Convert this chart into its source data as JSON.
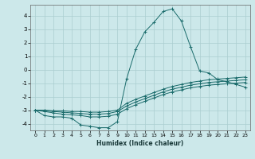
{
  "xlabel": "Humidex (Indice chaleur)",
  "xlim": [
    -0.5,
    23.5
  ],
  "ylim": [
    -4.5,
    4.8
  ],
  "xticks": [
    0,
    1,
    2,
    3,
    4,
    5,
    6,
    7,
    8,
    9,
    10,
    11,
    12,
    13,
    14,
    15,
    16,
    17,
    18,
    19,
    20,
    21,
    22,
    23
  ],
  "yticks": [
    -4,
    -3,
    -2,
    -1,
    0,
    1,
    2,
    3,
    4
  ],
  "bg_color": "#cce8ea",
  "grid_color": "#aacdd0",
  "line_color": "#1a6b6b",
  "lines": [
    {
      "x": [
        0,
        1,
        2,
        3,
        4,
        5,
        6,
        7,
        8,
        9,
        10,
        11,
        12,
        13,
        14,
        15,
        16,
        17,
        18,
        19,
        20,
        21,
        22,
        23
      ],
      "y": [
        -3.0,
        -3.4,
        -3.5,
        -3.5,
        -3.6,
        -4.1,
        -4.2,
        -4.3,
        -4.3,
        -3.85,
        -0.7,
        1.5,
        2.8,
        3.5,
        4.3,
        4.5,
        3.6,
        1.7,
        -0.1,
        -0.25,
        -0.75,
        -0.9,
        -1.1,
        -1.3
      ]
    },
    {
      "x": [
        0,
        1,
        2,
        3,
        4,
        5,
        6,
        7,
        8,
        9,
        10,
        11,
        12,
        13,
        14,
        15,
        16,
        17,
        18,
        19,
        20,
        21,
        22,
        23
      ],
      "y": [
        -3.0,
        -3.1,
        -3.2,
        -3.3,
        -3.35,
        -3.4,
        -3.5,
        -3.5,
        -3.45,
        -3.3,
        -2.9,
        -2.6,
        -2.35,
        -2.1,
        -1.85,
        -1.65,
        -1.5,
        -1.35,
        -1.25,
        -1.15,
        -1.1,
        -1.05,
        -1.0,
        -0.95
      ]
    },
    {
      "x": [
        0,
        1,
        2,
        3,
        4,
        5,
        6,
        7,
        8,
        9,
        10,
        11,
        12,
        13,
        14,
        15,
        16,
        17,
        18,
        19,
        20,
        21,
        22,
        23
      ],
      "y": [
        -3.0,
        -3.05,
        -3.1,
        -3.15,
        -3.2,
        -3.25,
        -3.3,
        -3.3,
        -3.25,
        -3.1,
        -2.7,
        -2.4,
        -2.15,
        -1.9,
        -1.65,
        -1.45,
        -1.3,
        -1.15,
        -1.05,
        -0.95,
        -0.9,
        -0.85,
        -0.8,
        -0.75
      ]
    },
    {
      "x": [
        0,
        1,
        2,
        3,
        4,
        5,
        6,
        7,
        8,
        9,
        10,
        11,
        12,
        13,
        14,
        15,
        16,
        17,
        18,
        19,
        20,
        21,
        22,
        23
      ],
      "y": [
        -3.0,
        -3.0,
        -3.05,
        -3.05,
        -3.1,
        -3.1,
        -3.15,
        -3.15,
        -3.1,
        -3.0,
        -2.5,
        -2.2,
        -1.95,
        -1.7,
        -1.45,
        -1.25,
        -1.1,
        -0.95,
        -0.85,
        -0.75,
        -0.7,
        -0.65,
        -0.6,
        -0.55
      ]
    }
  ]
}
